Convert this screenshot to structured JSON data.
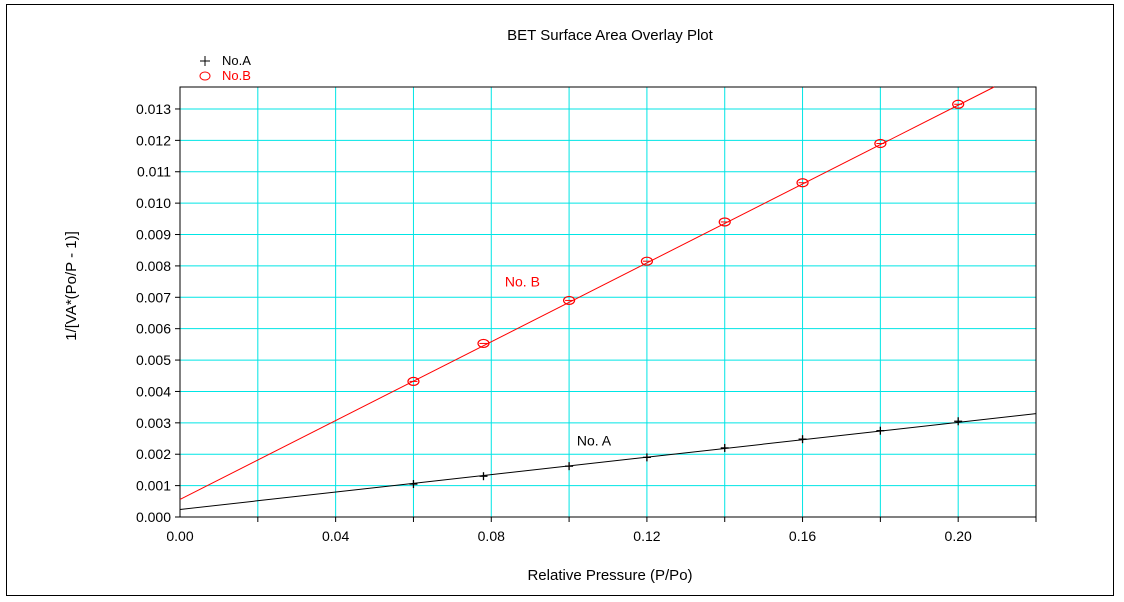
{
  "chart_data": {
    "type": "scatter",
    "title": "BET Surface Area Overlay Plot",
    "xlabel": "Relative Pressure (P/Po)",
    "ylabel": "1/[VA*(Po/P - 1)]",
    "xlim": [
      0.0,
      0.22
    ],
    "ylim": [
      0.0,
      0.0137
    ],
    "x_ticks": [
      "0.00",
      "0.04",
      "0.08",
      "0.12",
      "0.16",
      "0.20"
    ],
    "y_ticks": [
      "0.000",
      "0.001",
      "0.002",
      "0.003",
      "0.004",
      "0.005",
      "0.006",
      "0.007",
      "0.008",
      "0.009",
      "0.010",
      "0.011",
      "0.012",
      "0.013"
    ],
    "grid": true,
    "grid_color": "#00e5e5",
    "legend_position": "top-left",
    "series": [
      {
        "name": "No.A",
        "marker": "plus",
        "color": "#000000",
        "x": [
          0.06,
          0.078,
          0.1,
          0.12,
          0.14,
          0.16,
          0.18,
          0.2
        ],
        "y": [
          0.00105,
          0.0013,
          0.00162,
          0.0019,
          0.0022,
          0.00248,
          0.00275,
          0.00305
        ],
        "fit_line": {
          "intercept": 0.00024,
          "slope": 0.01388
        },
        "annotation": "No. A",
        "annotation_at": [
          0.102,
          0.00228
        ]
      },
      {
        "name": "No.B",
        "marker": "circle",
        "color": "#ff0000",
        "x": [
          0.06,
          0.078,
          0.1,
          0.12,
          0.14,
          0.16,
          0.18,
          0.2
        ],
        "y": [
          0.00432,
          0.00553,
          0.0069,
          0.00815,
          0.0094,
          0.01065,
          0.0119,
          0.01315
        ],
        "fit_line": {
          "intercept": 0.00056,
          "slope": 0.0628
        },
        "annotation": "No. B",
        "annotation_at": [
          0.0835,
          0.00735
        ]
      }
    ]
  }
}
